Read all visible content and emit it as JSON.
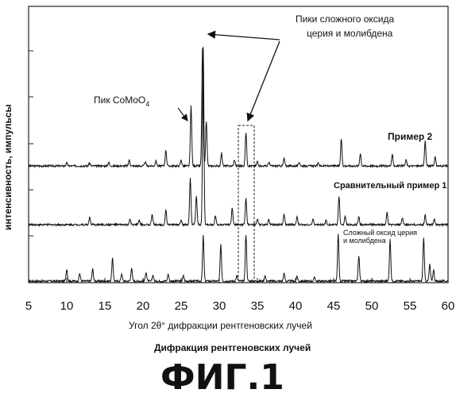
{
  "chart_data": {
    "type": "line",
    "xlabel": "Угол 2θ° дифракции рентгеновских лучей",
    "subtitle": "Дифракция рентгеновских лучей",
    "ylabel": "интенсивность, импульсы",
    "figure_label": "ФИГ.1",
    "xlim": [
      5,
      60
    ],
    "x_ticks": [
      "5",
      "10",
      "15",
      "20",
      "25",
      "30",
      "35",
      "40",
      "45",
      "50",
      "55",
      "60"
    ],
    "series": [
      {
        "name": "Пример 2",
        "baseline": 0.0,
        "peaks": [
          [
            10,
            0.04
          ],
          [
            13,
            0.04
          ],
          [
            15.5,
            0.05
          ],
          [
            18.2,
            0.08
          ],
          [
            20.3,
            0.05
          ],
          [
            21.7,
            0.07
          ],
          [
            23,
            0.21
          ],
          [
            25,
            0.08
          ],
          [
            26.3,
            0.8
          ],
          [
            27.8,
            1.55
          ],
          [
            28.3,
            0.6
          ],
          [
            30.3,
            0.17
          ],
          [
            32,
            0.08
          ],
          [
            33.5,
            0.45
          ],
          [
            35,
            0.06
          ],
          [
            36.5,
            0.05
          ],
          [
            38.5,
            0.1
          ],
          [
            40.5,
            0.05
          ],
          [
            43,
            0.04
          ],
          [
            46,
            0.36
          ],
          [
            48.5,
            0.17
          ],
          [
            52.7,
            0.15
          ],
          [
            54.5,
            0.08
          ],
          [
            57,
            0.33
          ],
          [
            58.3,
            0.12
          ]
        ]
      },
      {
        "name": "Сравнительный пример 1",
        "baseline": 0.0,
        "peaks": [
          [
            13,
            0.1
          ],
          [
            18.3,
            0.07
          ],
          [
            19.5,
            0.06
          ],
          [
            21.2,
            0.14
          ],
          [
            23,
            0.2
          ],
          [
            25,
            0.07
          ],
          [
            26.2,
            0.61
          ],
          [
            27,
            0.38
          ],
          [
            27.9,
            2.35
          ],
          [
            29.5,
            0.12
          ],
          [
            31.7,
            0.22
          ],
          [
            33.5,
            0.35
          ],
          [
            35,
            0.07
          ],
          [
            36.5,
            0.07
          ],
          [
            38.5,
            0.14
          ],
          [
            40.2,
            0.1
          ],
          [
            42.3,
            0.07
          ],
          [
            44,
            0.06
          ],
          [
            45.7,
            0.38
          ],
          [
            46.5,
            0.12
          ],
          [
            48.3,
            0.1
          ],
          [
            52,
            0.16
          ],
          [
            54,
            0.09
          ],
          [
            57,
            0.13
          ],
          [
            58.2,
            0.08
          ]
        ]
      },
      {
        "name": "Сложный оксид церия и молибдена",
        "baseline": 0.0,
        "peaks": [
          [
            10,
            0.16
          ],
          [
            11.7,
            0.1
          ],
          [
            13.4,
            0.16
          ],
          [
            16,
            0.3
          ],
          [
            17.2,
            0.1
          ],
          [
            18.5,
            0.17
          ],
          [
            20.4,
            0.12
          ],
          [
            21.3,
            0.08
          ],
          [
            23.3,
            0.09
          ],
          [
            25.3,
            0.07
          ],
          [
            27.9,
            0.6
          ],
          [
            30.2,
            0.48
          ],
          [
            32.3,
            0.07
          ],
          [
            33.5,
            0.62
          ],
          [
            36,
            0.07
          ],
          [
            38.5,
            0.1
          ],
          [
            40.2,
            0.06
          ],
          [
            42.5,
            0.05
          ],
          [
            45.6,
            0.62
          ],
          [
            48.3,
            0.34
          ],
          [
            52.4,
            0.55
          ],
          [
            56.8,
            0.57
          ],
          [
            57.6,
            0.22
          ],
          [
            58.1,
            0.15
          ]
        ]
      }
    ],
    "annotations": {
      "peaks_label_line1": "Пики сложного оксида",
      "peaks_label_line2": "церия и молибдена",
      "comoo4_label": "Пик CoMoO",
      "comoo4_sub": "4",
      "legend_example2": "Пример 2",
      "legend_comparative": "Сравнительный пример 1",
      "legend_oxide_line1": "Сложный оксид церия",
      "legend_oxide_line2": "и молибдена"
    }
  }
}
